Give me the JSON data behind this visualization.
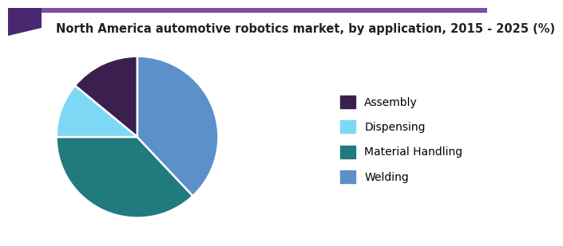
{
  "title": "North America automotive robotics market, by application, 2015 - 2025 (%)",
  "labels": [
    "Assembly",
    "Dispensing",
    "Material Handling",
    "Welding"
  ],
  "sizes": [
    14,
    11,
    37,
    38
  ],
  "colors": [
    "#3b1f4e",
    "#7dd8f5",
    "#217a7e",
    "#5b90c8"
  ],
  "startangle": 90,
  "background_color": "#ffffff",
  "title_fontsize": 10.5,
  "legend_fontsize": 10,
  "header_rect_color": "#4a2870",
  "header_line_color": "#7b50a0",
  "explode": [
    0,
    0,
    0,
    0
  ]
}
